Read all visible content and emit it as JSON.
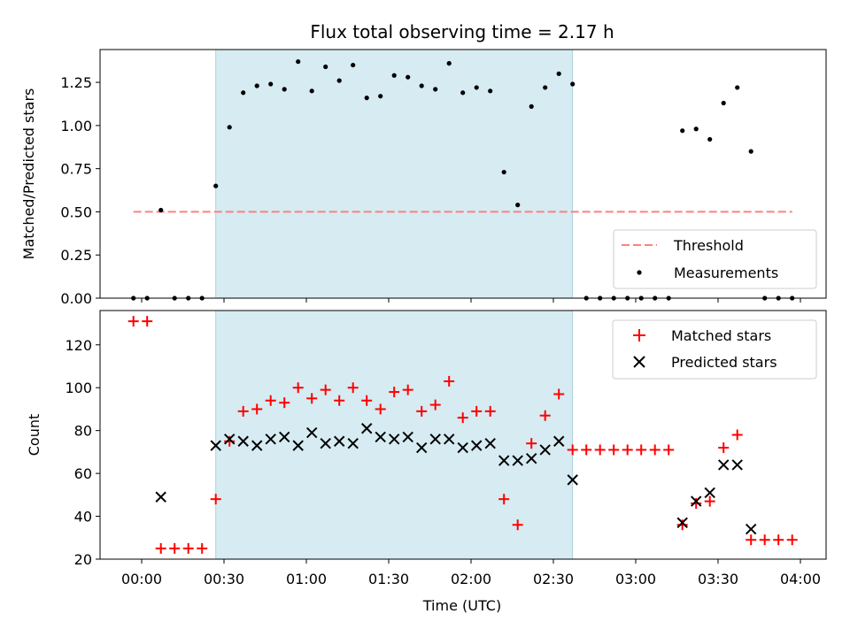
{
  "chart_data": [
    {
      "type": "scatter",
      "title": "Flux total observing time = 2.17 h",
      "xlabel": "",
      "ylabel": "Matched/Predicted stars",
      "ylim": [
        0,
        1.44
      ],
      "yticks": [
        "0.00",
        "0.25",
        "0.50",
        "0.75",
        "1.00",
        "1.25"
      ],
      "ytick_values": [
        0,
        0.25,
        0.5,
        0.75,
        1.0,
        1.25
      ],
      "legend_position": "lower-right",
      "shaded_interval": [
        "00:27",
        "02:37"
      ],
      "shade_color": "#add8e6",
      "threshold": {
        "name": "Threshold",
        "value": 0.5,
        "x_start": "23:57",
        "x_end": "03:57",
        "color": "#ff7f7f"
      },
      "series": [
        {
          "name": "Measurements",
          "marker": "dot",
          "color": "#000000",
          "x": [
            "23:57",
            "00:02",
            "00:07",
            "00:12",
            "00:17",
            "00:22",
            "00:27",
            "00:32",
            "00:37",
            "00:42",
            "00:47",
            "00:52",
            "00:57",
            "01:02",
            "01:07",
            "01:12",
            "01:17",
            "01:22",
            "01:27",
            "01:32",
            "01:37",
            "01:42",
            "01:47",
            "01:52",
            "01:57",
            "02:02",
            "02:07",
            "02:12",
            "02:17",
            "02:22",
            "02:27",
            "02:32",
            "02:37",
            "02:42",
            "02:47",
            "02:52",
            "02:57",
            "03:02",
            "03:07",
            "03:12",
            "03:17",
            "03:22",
            "03:27",
            "03:32",
            "03:37",
            "03:42",
            "03:47",
            "03:52",
            "03:57"
          ],
          "values": [
            0,
            0,
            0.51,
            0,
            0,
            0,
            0.65,
            0.99,
            1.19,
            1.23,
            1.24,
            1.21,
            1.37,
            1.2,
            1.34,
            1.26,
            1.35,
            1.16,
            1.17,
            1.29,
            1.28,
            1.23,
            1.21,
            1.36,
            1.19,
            1.22,
            1.2,
            0.73,
            0.54,
            1.11,
            1.22,
            1.3,
            1.24,
            0,
            0,
            0,
            0,
            0,
            0,
            0,
            0.97,
            0.98,
            0.92,
            1.13,
            1.22,
            0.85,
            0,
            0,
            0
          ]
        }
      ]
    },
    {
      "type": "scatter",
      "title": "",
      "xlabel": "Time (UTC)",
      "ylabel": "Count",
      "ylim": [
        20,
        136
      ],
      "yticks": [
        "20",
        "40",
        "60",
        "80",
        "100",
        "120"
      ],
      "ytick_values": [
        20,
        40,
        60,
        80,
        100,
        120
      ],
      "xticks": [
        "00:00",
        "00:30",
        "01:00",
        "01:30",
        "02:00",
        "02:30",
        "03:00",
        "03:30",
        "04:00"
      ],
      "legend_position": "top-right",
      "shaded_interval": [
        "00:27",
        "02:37"
      ],
      "series": [
        {
          "name": "Matched stars",
          "marker": "plus",
          "color": "#ff0000",
          "x": [
            "23:57",
            "00:02",
            "00:07",
            "00:12",
            "00:17",
            "00:22",
            "00:27",
            "00:32",
            "00:37",
            "00:42",
            "00:47",
            "00:52",
            "00:57",
            "01:02",
            "01:07",
            "01:12",
            "01:17",
            "01:22",
            "01:27",
            "01:32",
            "01:37",
            "01:42",
            "01:47",
            "01:52",
            "01:57",
            "02:02",
            "02:07",
            "02:12",
            "02:17",
            "02:22",
            "02:27",
            "02:32",
            "02:37",
            "02:42",
            "02:47",
            "02:52",
            "02:57",
            "03:02",
            "03:07",
            "03:12",
            "03:17",
            "03:22",
            "03:27",
            "03:32",
            "03:37",
            "03:42",
            "03:47",
            "03:52",
            "03:57"
          ],
          "values": [
            131,
            131,
            25,
            25,
            25,
            25,
            48,
            75,
            89,
            90,
            94,
            93,
            100,
            95,
            99,
            94,
            100,
            94,
            90,
            98,
            99,
            89,
            92,
            103,
            86,
            89,
            89,
            48,
            36,
            74,
            87,
            97,
            71,
            71,
            71,
            71,
            71,
            71,
            71,
            71,
            36,
            46,
            47,
            72,
            78,
            29,
            29,
            29,
            29
          ]
        },
        {
          "name": "Predicted stars",
          "marker": "x",
          "color": "#000000",
          "x": [
            "00:07",
            "00:27",
            "00:32",
            "00:37",
            "00:42",
            "00:47",
            "00:52",
            "00:57",
            "01:02",
            "01:07",
            "01:12",
            "01:17",
            "01:22",
            "01:27",
            "01:32",
            "01:37",
            "01:42",
            "01:47",
            "01:52",
            "01:57",
            "02:02",
            "02:07",
            "02:12",
            "02:17",
            "02:22",
            "02:27",
            "02:32",
            "02:37",
            "03:17",
            "03:22",
            "03:27",
            "03:32",
            "03:37",
            "03:42"
          ],
          "values": [
            49,
            73,
            76,
            75,
            73,
            76,
            77,
            73,
            79,
            74,
            75,
            74,
            81,
            77,
            76,
            77,
            72,
            76,
            76,
            72,
            73,
            74,
            66,
            66,
            67,
            71,
            75,
            57,
            37,
            47,
            51,
            64,
            64,
            34
          ]
        }
      ]
    }
  ]
}
